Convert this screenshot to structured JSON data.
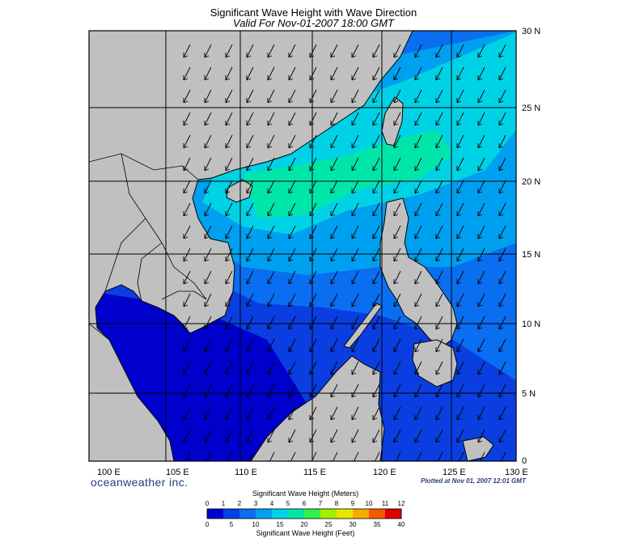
{
  "title": "Significant Wave Height with Wave Direction",
  "subtitle": "Valid For Nov-01-2007 18:00 GMT",
  "longitude_labels": [
    "100 E",
    "105 E",
    "110 E",
    "115 E",
    "120 E",
    "125 E",
    "130 E"
  ],
  "latitude_labels": [
    "30 N",
    "25 N",
    "20 N",
    "15 N",
    "10 N",
    "5 N",
    "0"
  ],
  "brand": "oceanweather inc.",
  "plotted_at": "Plotted at Nov 01, 2007 12:01 GMT",
  "colorbar": {
    "meters_title": "Significant Wave Height (Meters)",
    "feet_title": "Significant Wave Height (Feet)",
    "meters_ticks": [
      "0",
      "1",
      "2",
      "3",
      "4",
      "5",
      "6",
      "7",
      "8",
      "9",
      "10",
      "11",
      "12"
    ],
    "feet_ticks": [
      "0",
      "5",
      "10",
      "15",
      "20",
      "25",
      "30",
      "35",
      "40"
    ],
    "colors": [
      "#0000cd",
      "#0040e6",
      "#0a6ef0",
      "#00a0f0",
      "#00d2e6",
      "#00e6aa",
      "#32f04b",
      "#a0f000",
      "#e6e600",
      "#f5aa00",
      "#f55a00",
      "#dc0000"
    ]
  },
  "colors": {
    "land": "#c0c0c0",
    "deep_blue": "#0000cd",
    "ocean_light": "#00d2e6",
    "ocean_green": "#00e6aa"
  }
}
